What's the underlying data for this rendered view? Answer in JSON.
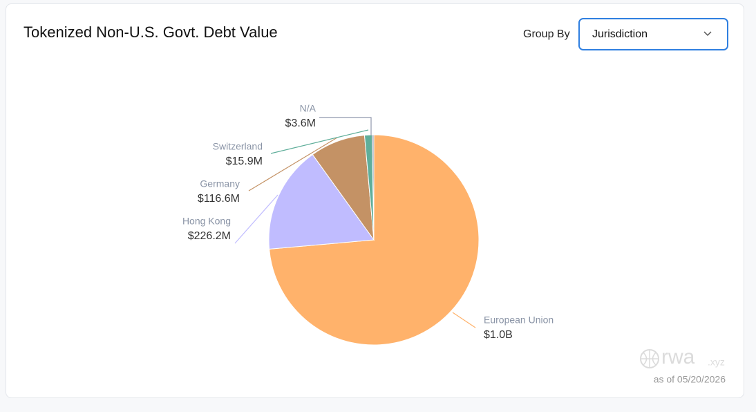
{
  "chart_data": {
    "type": "pie",
    "title": "Tokenized Non-U.S. Govt. Debt Value",
    "categories": [
      "European Union",
      "Hong Kong",
      "Germany",
      "Switzerland",
      "N/A"
    ],
    "values": [
      1010000000,
      226200000,
      116600000,
      15900000,
      3600000
    ],
    "value_labels": [
      "$1.0B",
      "$226.2M",
      "$116.6M",
      "$15.9M",
      "$3.6M"
    ],
    "colors": [
      "#ffb26b",
      "#c0bcff",
      "#c49265",
      "#5fae9a",
      "#8f97ac"
    ]
  },
  "controls": {
    "group_by_label": "Group By",
    "group_by_value": "Jurisdiction"
  },
  "watermark": {
    "brand": "rwa",
    "suffix": ".xyz",
    "date": "as of 05/20/2026"
  }
}
